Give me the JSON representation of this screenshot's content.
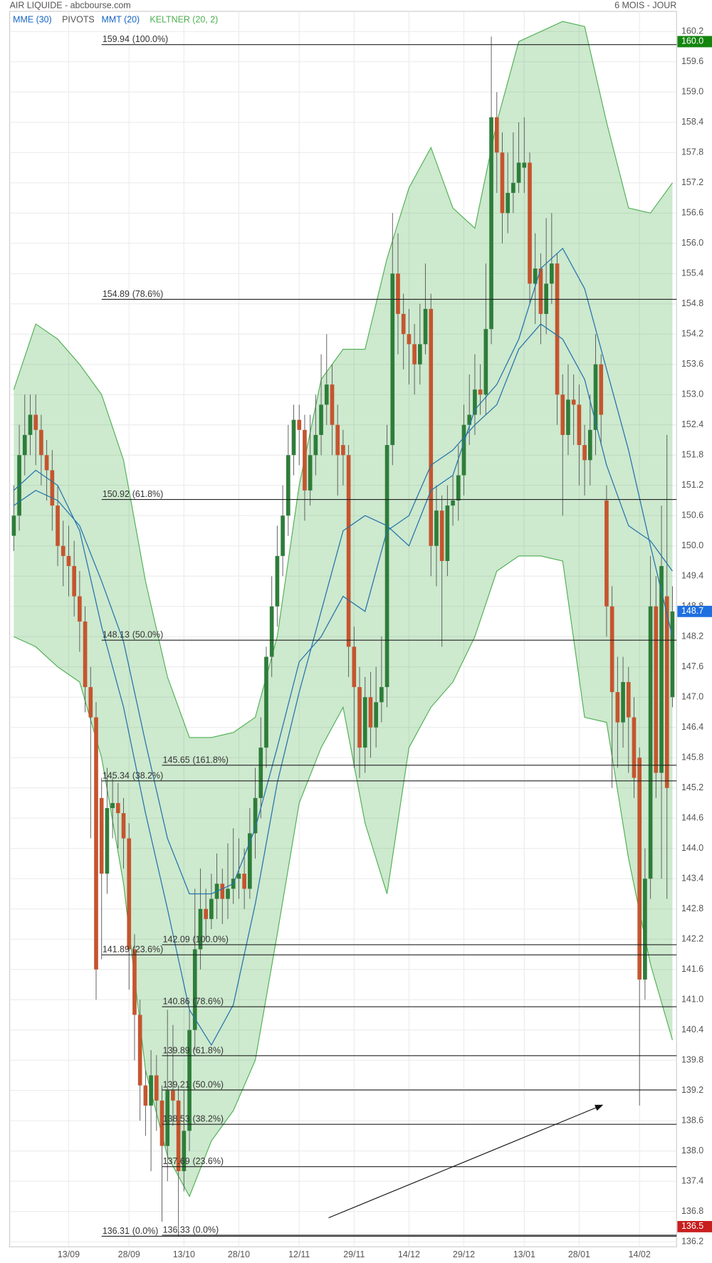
{
  "chart_data": {
    "type": "candlestick",
    "title": "AIR LIQUIDE - abcbourse.com",
    "subtitle": "6 MOIS - JOUR",
    "xlim": [
      -0.75,
      120.75
    ],
    "xticks": [
      {
        "value": 10,
        "label": "13/09"
      },
      {
        "value": 21,
        "label": "28/09"
      },
      {
        "value": 31,
        "label": "13/10"
      },
      {
        "value": 41,
        "label": "28/10"
      },
      {
        "value": 52,
        "label": "12/11"
      },
      {
        "value": 62,
        "label": "29/11"
      },
      {
        "value": 72,
        "label": "14/12"
      },
      {
        "value": 82,
        "label": "29/12"
      },
      {
        "value": 93,
        "label": "13/01"
      },
      {
        "value": 103,
        "label": "28/01"
      },
      {
        "value": 114,
        "label": "14/02"
      }
    ],
    "ylim": [
      136.1,
      160.6
    ],
    "yticks": [
      136.2,
      136.8,
      137.4,
      {
        "value": 138,
        "label": "138.0"
      },
      138.6,
      139.2,
      139.8,
      140.4,
      {
        "value": 141,
        "label": "141.0"
      },
      141.6,
      142.2,
      142.8,
      143.4,
      {
        "value": 144,
        "label": "144.0"
      },
      144.6,
      145.2,
      145.8,
      146.4,
      {
        "value": 147,
        "label": "147.0"
      },
      147.6,
      148.2,
      148.8,
      149.4,
      {
        "value": 150,
        "label": "150.0"
      },
      150.6,
      151.2,
      151.8,
      152.4,
      {
        "value": 153,
        "label": "153.0"
      },
      153.6,
      154.2,
      154.8,
      155.4,
      {
        "value": 156,
        "label": "156.0"
      },
      156.6,
      157.2,
      157.8,
      158.4,
      {
        "value": 159,
        "label": "159.0"
      },
      159.6,
      160.2
    ],
    "grid": true,
    "up_color": "#2e7d3a",
    "down_color": "#c4552f",
    "open": [
      150.2,
      150.6,
      151.8,
      152.2,
      152.6,
      152.3,
      151.8,
      151.5,
      150.8,
      150.0,
      149.8,
      149.6,
      149.0,
      148.5,
      147.2,
      146.6,
      145.0,
      143.5,
      144.8,
      144.9,
      144.7,
      144.2,
      142.0,
      140.7,
      139.3,
      138.9,
      139.5,
      139.0,
      138.1,
      139.2,
      139.0,
      137.6,
      138.4,
      140.4,
      142.0,
      142.8,
      142.6,
      143.0,
      143.3,
      143.0,
      143.2,
      143.4,
      143.5,
      143.2,
      144.3,
      145.0,
      146.0,
      147.8,
      148.8,
      149.8,
      150.6,
      151.8,
      152.5,
      152.3,
      151.1,
      151.8,
      152.2,
      152.8,
      153.2,
      152.4,
      152.0,
      151.8,
      148.0,
      147.2,
      146.0,
      147.0,
      146.4,
      146.9,
      147.2,
      152.0,
      155.4,
      154.6,
      154.2,
      154.0,
      153.6,
      154.0,
      154.7,
      150.0,
      150.7,
      149.7,
      150.8,
      150.9,
      151.4,
      152.4,
      152.6,
      153.1,
      153.0,
      154.3,
      158.5,
      157.8,
      156.6,
      157.0,
      157.2,
      157.5,
      157.6,
      155.2,
      155.5,
      154.6,
      155.2,
      155.6,
      153.0,
      152.2,
      152.9,
      152.8,
      152.0,
      151.7,
      152.3,
      153.6,
      150.9,
      148.8,
      147.1,
      146.5,
      147.3,
      146.6,
      145.8,
      141.4,
      143.4,
      148.8,
      145.5,
      149.0,
      147.0
    ],
    "high": [
      151.2,
      152.4,
      153.0,
      153.0,
      153.0,
      152.6,
      152.1,
      151.9,
      151.2,
      150.5,
      150.4,
      150.1,
      149.5,
      148.8,
      147.6,
      146.9,
      145.4,
      145.6,
      145.4,
      145.3,
      145.0,
      144.5,
      142.3,
      141.0,
      139.6,
      140.0,
      139.9,
      139.3,
      140.8,
      140.5,
      139.3,
      139.2,
      140.8,
      143.2,
      143.6,
      143.2,
      143.5,
      143.9,
      143.6,
      144.1,
      144.4,
      144.2,
      144.0,
      144.8,
      145.6,
      146.6,
      148.0,
      149.4,
      150.4,
      151.2,
      152.4,
      152.8,
      152.8,
      152.6,
      152.6,
      153.0,
      153.8,
      154.2,
      153.6,
      152.8,
      152.3,
      152.0,
      148.4,
      147.6,
      147.4,
      147.5,
      147.6,
      148.2,
      152.4,
      156.6,
      156.2,
      155.0,
      154.7,
      154.4,
      154.8,
      155.6,
      155.0,
      151.2,
      151.0,
      151.2,
      151.4,
      152.0,
      152.8,
      153.4,
      153.8,
      153.6,
      155.6,
      160.1,
      159.0,
      158.2,
      157.8,
      158.2,
      158.4,
      158.5,
      157.8,
      156.2,
      155.8,
      156.5,
      156.6,
      155.8,
      153.4,
      153.6,
      153.4,
      153.2,
      152.4,
      153.0,
      154.2,
      153.8,
      151.2,
      149.2,
      147.8,
      147.8,
      147.6,
      147.0,
      146.0,
      144.0,
      149.8,
      149.4,
      150.8,
      152.2,
      149.2
    ],
    "low": [
      149.9,
      150.3,
      151.4,
      151.8,
      151.6,
      151.2,
      150.9,
      150.3,
      149.6,
      149.2,
      149.0,
      148.6,
      147.9,
      146.7,
      144.2,
      141.0,
      141.8,
      143.1,
      144.2,
      144.0,
      143.6,
      141.2,
      139.8,
      138.6,
      138.3,
      137.6,
      138.4,
      136.6,
      137.4,
      138.5,
      136.3,
      137.2,
      138.0,
      140.0,
      141.6,
      142.2,
      142.4,
      142.6,
      142.5,
      142.6,
      142.9,
      143.0,
      142.8,
      143.0,
      143.8,
      144.6,
      145.6,
      147.4,
      148.4,
      149.4,
      150.2,
      151.4,
      151.6,
      150.5,
      150.8,
      151.4,
      151.8,
      152.4,
      151.8,
      151.0,
      151.2,
      147.4,
      145.6,
      145.4,
      145.5,
      145.8,
      146.0,
      146.5,
      146.8,
      151.6,
      153.8,
      153.5,
      153.2,
      153.0,
      153.2,
      153.8,
      149.4,
      149.2,
      148.0,
      149.4,
      150.4,
      150.5,
      151.0,
      152.0,
      152.2,
      152.6,
      152.6,
      154.0,
      157.0,
      156.0,
      156.2,
      156.6,
      157.0,
      157.0,
      154.8,
      154.4,
      154.0,
      154.2,
      154.8,
      152.4,
      150.6,
      151.8,
      152.0,
      151.2,
      151.0,
      151.2,
      151.8,
      152.0,
      148.2,
      145.2,
      145.6,
      146.0,
      145.5,
      145.0,
      138.9,
      141.0,
      143.0,
      145.0,
      143.4,
      143.0,
      146.8
    ],
    "close": [
      150.6,
      151.8,
      152.2,
      152.6,
      152.3,
      151.8,
      151.5,
      150.8,
      150.0,
      149.8,
      149.6,
      149.0,
      148.5,
      147.2,
      146.6,
      141.6,
      143.5,
      144.8,
      144.9,
      144.7,
      144.2,
      142.0,
      140.7,
      139.3,
      138.9,
      139.5,
      139.0,
      138.1,
      139.2,
      139.0,
      137.6,
      138.4,
      140.4,
      142.0,
      142.8,
      142.6,
      143.0,
      143.3,
      143.0,
      143.2,
      143.4,
      143.5,
      143.2,
      144.3,
      145.0,
      146.0,
      147.8,
      148.8,
      149.8,
      150.6,
      151.8,
      152.5,
      152.3,
      151.1,
      151.8,
      152.2,
      152.8,
      153.2,
      152.4,
      151.8,
      151.8,
      148.0,
      147.2,
      146.0,
      147.0,
      146.4,
      146.9,
      147.2,
      152.0,
      155.4,
      154.6,
      154.2,
      154.0,
      153.6,
      154.0,
      154.7,
      150.0,
      150.7,
      149.7,
      150.8,
      150.9,
      151.4,
      152.4,
      152.6,
      153.1,
      153.0,
      154.3,
      158.5,
      157.8,
      156.6,
      157.0,
      157.2,
      157.6,
      157.6,
      155.2,
      155.5,
      154.6,
      155.2,
      155.6,
      153.0,
      152.2,
      152.9,
      152.8,
      152.0,
      151.7,
      152.3,
      153.6,
      152.6,
      148.8,
      147.1,
      146.5,
      147.3,
      146.6,
      145.4,
      141.4,
      143.4,
      148.8,
      145.5,
      149.6,
      145.2,
      148.7
    ],
    "indicator_x": [
      0,
      4,
      8,
      12,
      16,
      20,
      24,
      28,
      32,
      36,
      40,
      44,
      48,
      52,
      56,
      60,
      64,
      68,
      72,
      76,
      80,
      84,
      88,
      92,
      96,
      100,
      104,
      108,
      112,
      116,
      120
    ],
    "series": [
      {
        "name": "MME (30)",
        "color": "#1565c0",
        "line_color": "#2373ab",
        "values": [
          150.8,
          151.1,
          150.9,
          150.4,
          149.3,
          148.1,
          146.1,
          144.2,
          143.1,
          143.1,
          143.3,
          144.4,
          146.0,
          147.7,
          148.2,
          149.0,
          148.7,
          150.3,
          150.6,
          151.6,
          151.9,
          152.4,
          152.8,
          153.9,
          154.4,
          154.1,
          153.3,
          151.6,
          150.4,
          150.1,
          149.5
        ]
      },
      {
        "name": "PIVOTS",
        "color": "#555555"
      },
      {
        "name": "MMT (20)",
        "color": "#1565c0",
        "line_color": "#2373ab",
        "values": [
          151.1,
          151.5,
          151.2,
          150.3,
          148.4,
          146.8,
          144.7,
          142.8,
          140.8,
          140.1,
          140.9,
          142.9,
          145.3,
          147.1,
          148.7,
          150.3,
          150.6,
          150.4,
          150.0,
          151.1,
          151.4,
          152.7,
          153.2,
          154.1,
          155.5,
          155.9,
          155.1,
          153.5,
          151.9,
          150.0,
          148.2
        ]
      },
      {
        "name": "KELTNER (20, 2)",
        "color": "#4caf50",
        "upper": [
          153.1,
          154.4,
          154.1,
          153.6,
          153.0,
          151.7,
          149.3,
          147.4,
          146.2,
          146.2,
          146.3,
          146.6,
          148.2,
          151.2,
          153.3,
          153.9,
          153.9,
          155.7,
          157.1,
          157.9,
          156.7,
          156.3,
          158.4,
          160.0,
          160.2,
          160.4,
          160.3,
          158.4,
          156.7,
          156.6,
          157.2
        ],
        "lower": [
          148.2,
          148.0,
          147.6,
          147.3,
          145.8,
          143.3,
          139.6,
          137.9,
          137.1,
          138.2,
          138.8,
          139.8,
          142.3,
          144.9,
          146.0,
          146.8,
          144.5,
          143.1,
          146.0,
          146.8,
          147.3,
          148.2,
          149.5,
          149.8,
          149.8,
          149.7,
          146.6,
          146.5,
          143.8,
          141.7,
          140.2
        ]
      }
    ],
    "fib_sets": [
      {
        "start": 16,
        "levels": [
          {
            "value": 159.94,
            "pct": "(100.0%)"
          },
          {
            "value": 154.89,
            "pct": "(78.6%)"
          },
          {
            "value": 150.92,
            "pct": "(61.8%)"
          },
          {
            "value": 148.13,
            "pct": "(50.0%)"
          },
          {
            "value": 145.34,
            "pct": "(38.2%)"
          },
          {
            "value": 141.89,
            "pct": "(23.6%)"
          },
          {
            "value": 136.31,
            "pct": "(0.0%)"
          }
        ]
      },
      {
        "start": 27,
        "levels": [
          {
            "value": 145.65,
            "pct": "(161.8%)"
          },
          {
            "value": 142.09,
            "pct": "(100.0%)"
          },
          {
            "value": 140.86,
            "pct": "(78.6%)"
          },
          {
            "value": 139.89,
            "pct": "(61.8%)"
          },
          {
            "value": 139.21,
            "pct": "(50.0%)"
          },
          {
            "value": 138.53,
            "pct": "(38.2%)"
          },
          {
            "value": 137.69,
            "pct": "(23.6%)"
          },
          {
            "value": 136.33,
            "pct": "(0.0%)"
          }
        ]
      }
    ],
    "price_tags": [
      {
        "value": 160,
        "label": "160.0",
        "color": "#13850f"
      },
      {
        "value": 148.7,
        "label": "148.7",
        "color": "#1e6fe0"
      },
      {
        "value": 136.5,
        "label": "136.5",
        "color": "#c81e1e"
      }
    ]
  }
}
